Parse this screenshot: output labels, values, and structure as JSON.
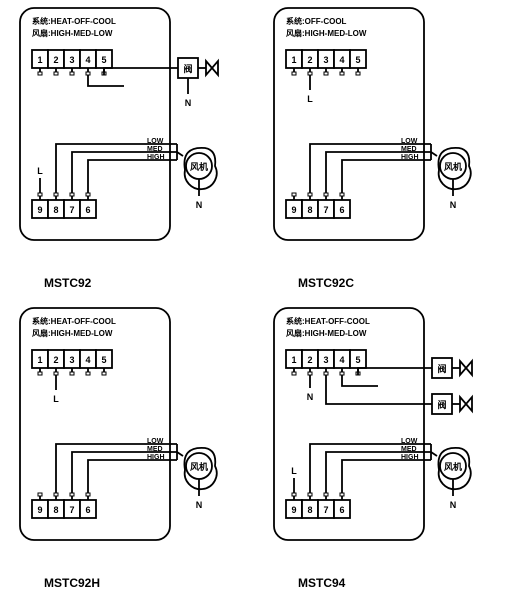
{
  "diagrams": [
    {
      "model": "MSTC92",
      "system_label": "系统:HEAT-OFF-COOL",
      "fan_label": "风扇:HIGH-MED-LOW",
      "top_terminals": [
        "1",
        "2",
        "3",
        "4",
        "5"
      ],
      "bottom_terminals": [
        "9",
        "8",
        "7",
        "6"
      ],
      "has_valve": true,
      "has_second_valve": false,
      "valve_row": "top",
      "n_from_valve": true,
      "fan_labels": [
        "HIGH",
        "MED",
        "LOW"
      ],
      "fan_cn": "风机",
      "valve_cn": "阀",
      "L_label": "L",
      "N_label": "N",
      "L_pos": "bottom-left",
      "colors": {
        "stroke": "#000000",
        "fill": "#ffffff",
        "bg": "#ffffff"
      },
      "stroke_width": 1.8
    },
    {
      "model": "MSTC92C",
      "system_label": "系统:OFF-COOL",
      "fan_label": "风扇:HIGH-MED-LOW",
      "top_terminals": [
        "1",
        "2",
        "3",
        "4",
        "5"
      ],
      "bottom_terminals": [
        "9",
        "8",
        "7",
        "6"
      ],
      "has_valve": false,
      "has_second_valve": false,
      "n_from_valve": false,
      "fan_labels": [
        "HIGH",
        "MED",
        "LOW"
      ],
      "fan_cn": "风机",
      "L_label": "L",
      "N_label": "N",
      "L_pos": "top-under-2",
      "colors": {
        "stroke": "#000000",
        "fill": "#ffffff",
        "bg": "#ffffff"
      },
      "stroke_width": 1.8
    },
    {
      "model": "MSTC92H",
      "system_label": "系统:HEAT-OFF-COOL",
      "fan_label": "风扇:HIGH-MED-LOW",
      "top_terminals": [
        "1",
        "2",
        "3",
        "4",
        "5"
      ],
      "bottom_terminals": [
        "9",
        "8",
        "7",
        "6"
      ],
      "has_valve": false,
      "has_second_valve": false,
      "n_from_valve": false,
      "fan_labels": [
        "HIGH",
        "MED",
        "LOW"
      ],
      "fan_cn": "风机",
      "L_label": "L",
      "N_label": "N",
      "L_pos": "top-under-2",
      "colors": {
        "stroke": "#000000",
        "fill": "#ffffff",
        "bg": "#ffffff"
      },
      "stroke_width": 1.8
    },
    {
      "model": "MSTC94",
      "system_label": "系统:HEAT-OFF-COOL",
      "fan_label": "风扇:HIGH-MED-LOW",
      "top_terminals": [
        "1",
        "2",
        "3",
        "4",
        "5"
      ],
      "bottom_terminals": [
        "9",
        "8",
        "7",
        "6"
      ],
      "has_valve": true,
      "has_second_valve": true,
      "valve_row": "top",
      "n_from_valve": false,
      "n_under_top": true,
      "fan_labels": [
        "HIGH",
        "MED",
        "LOW"
      ],
      "fan_cn": "风机",
      "valve_cn": "阀",
      "L_label": "L",
      "N_label": "N",
      "L_pos": "bottom-left",
      "colors": {
        "stroke": "#000000",
        "fill": "#ffffff",
        "bg": "#ffffff"
      },
      "stroke_width": 1.8
    }
  ]
}
